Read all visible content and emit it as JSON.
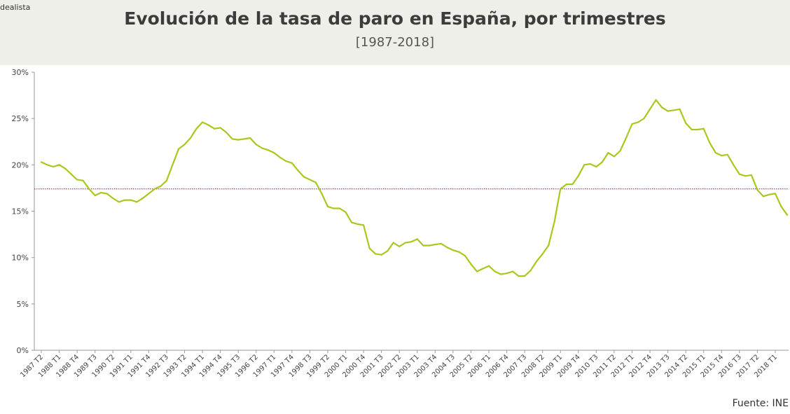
{
  "brand": "dealista",
  "source": "Fuente: INE",
  "chart_data": {
    "type": "line",
    "title": "Evolución de la tasa de paro en España, por trimestres",
    "subtitle": "[1987-2018]",
    "xlabel": "",
    "ylabel": "",
    "ylim": [
      0,
      30
    ],
    "y_ticks": [
      "0%",
      "5%",
      "10%",
      "15%",
      "20%",
      "25%",
      "30%"
    ],
    "x_tick_labels": [
      "1987 T2",
      "1988 T1",
      "1988 T4",
      "1989 T3",
      "1990 T2",
      "1991 T1",
      "1991 T4",
      "1992 T3",
      "1993 T2",
      "1994 T1",
      "1994 T4",
      "1995 T3",
      "1996 T2",
      "1997 T1",
      "1997 T4",
      "1998 T3",
      "1999 T2",
      "2000 T1",
      "2000 T4",
      "2001 T3",
      "2002 T2",
      "2003 T1",
      "2003 T4",
      "2004 T3",
      "2005 T2",
      "2006 T1",
      "2006 T4",
      "2007 T3",
      "2008 T2",
      "2009 T1",
      "2009 T4",
      "2010 T3",
      "2011 T2",
      "2012 T1",
      "2012 T4",
      "2013 T3",
      "2014 T2",
      "2015 T1",
      "2015 T4",
      "2016 T3",
      "2017 T2",
      "2018 T1"
    ],
    "series_color": "#a8c81e",
    "reference_line": {
      "value": 17.4,
      "color": "#7a1f5c"
    },
    "grid": false,
    "series": [
      {
        "values": [
          20.3,
          20.0,
          19.8,
          20.0,
          19.6,
          19.0,
          18.4,
          18.3,
          17.4,
          16.7,
          17.0,
          16.9,
          16.4,
          16.0,
          16.2,
          16.2,
          16.0,
          16.4,
          16.9,
          17.4,
          17.7,
          18.3,
          20.0,
          21.7,
          22.2,
          22.9,
          23.9,
          24.6,
          24.3,
          23.9,
          24.0,
          23.5,
          22.8,
          22.7,
          22.8,
          22.9,
          22.2,
          21.8,
          21.6,
          21.3,
          20.8,
          20.4,
          20.2,
          19.4,
          18.7,
          18.4,
          18.1,
          16.9,
          15.5,
          15.3,
          15.3,
          14.9,
          13.8,
          13.6,
          13.5,
          11.0,
          10.4,
          10.3,
          10.7,
          11.6,
          11.2,
          11.6,
          11.7,
          12.0,
          11.3,
          11.3,
          11.4,
          11.5,
          11.1,
          10.8,
          10.6,
          10.2,
          9.3,
          8.5,
          8.8,
          9.1,
          8.5,
          8.2,
          8.3,
          8.5,
          8.0,
          8.0,
          8.6,
          9.6,
          10.4,
          11.3,
          13.9,
          17.4,
          17.9,
          17.9,
          18.8,
          20.0,
          20.1,
          19.8,
          20.3,
          21.3,
          20.9,
          21.5,
          22.9,
          24.4,
          24.6,
          25.0,
          26.0,
          27.0,
          26.2,
          25.8,
          25.9,
          26.0,
          24.5,
          23.8,
          23.8,
          23.9,
          22.4,
          21.3,
          21.0,
          21.1,
          20.0,
          19.0,
          18.8,
          18.9,
          17.3,
          16.6,
          16.8,
          16.9,
          15.5,
          14.6
        ]
      }
    ]
  }
}
